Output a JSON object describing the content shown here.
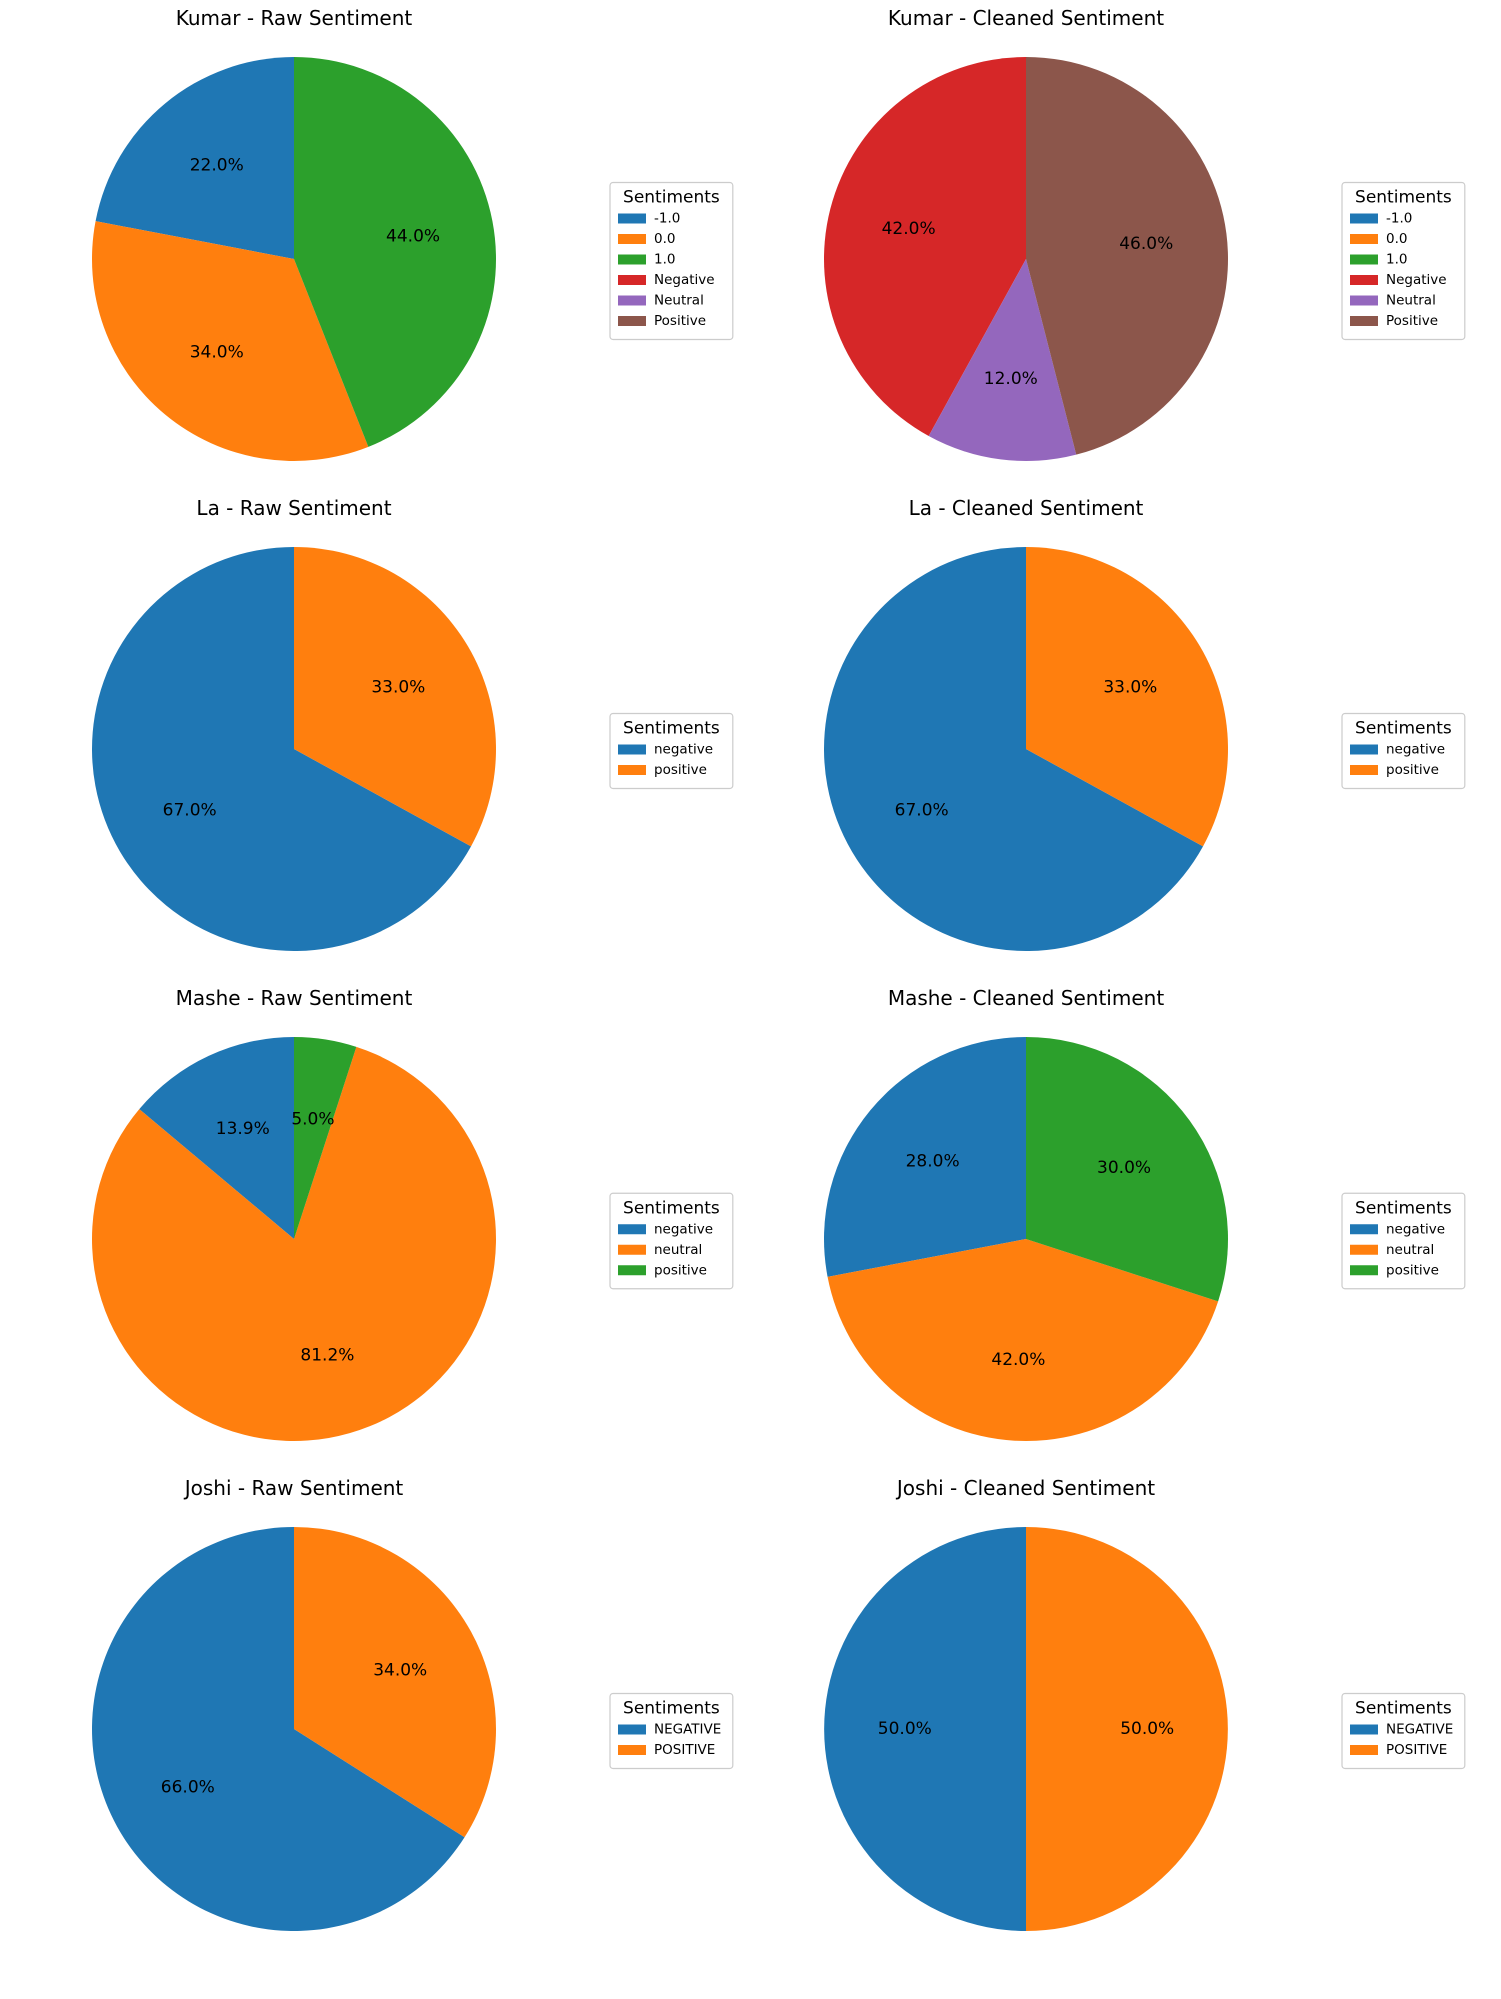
{
  "figure_title": "",
  "legend_title": "Sentiments",
  "chart_data": [
    {
      "type": "pie",
      "title": "Kumar - Raw Sentiment",
      "legend_title": "Sentiments",
      "legend_entries": [
        {
          "label": "-1.0",
          "color": "#1f77b4"
        },
        {
          "label": "0.0",
          "color": "#ff7f0e"
        },
        {
          "label": "1.0",
          "color": "#2ca02c"
        },
        {
          "label": "Negative",
          "color": "#d62728"
        },
        {
          "label": "Neutral",
          "color": "#9467bd"
        },
        {
          "label": "Positive",
          "color": "#8c564b"
        }
      ],
      "slices": [
        {
          "label": "-1.0",
          "value": 22.0,
          "pct_label": "22.0%",
          "color": "#1f77b4"
        },
        {
          "label": "0.0",
          "value": 34.0,
          "pct_label": "34.0%",
          "color": "#ff7f0e"
        },
        {
          "label": "1.0",
          "value": 44.0,
          "pct_label": "44.0%",
          "color": "#2ca02c"
        }
      ]
    },
    {
      "type": "pie",
      "title": "Kumar - Cleaned Sentiment",
      "legend_title": "Sentiments",
      "legend_entries": [
        {
          "label": "-1.0",
          "color": "#1f77b4"
        },
        {
          "label": "0.0",
          "color": "#ff7f0e"
        },
        {
          "label": "1.0",
          "color": "#2ca02c"
        },
        {
          "label": "Negative",
          "color": "#d62728"
        },
        {
          "label": "Neutral",
          "color": "#9467bd"
        },
        {
          "label": "Positive",
          "color": "#8c564b"
        }
      ],
      "slices": [
        {
          "label": "Negative",
          "value": 42.0,
          "pct_label": "42.0%",
          "color": "#d62728"
        },
        {
          "label": "Neutral",
          "value": 12.0,
          "pct_label": "12.0%",
          "color": "#9467bd"
        },
        {
          "label": "Positive",
          "value": 46.0,
          "pct_label": "46.0%",
          "color": "#8c564b"
        }
      ]
    },
    {
      "type": "pie",
      "title": "La - Raw Sentiment",
      "legend_title": "Sentiments",
      "legend_entries": [
        {
          "label": "negative",
          "color": "#1f77b4"
        },
        {
          "label": "positive",
          "color": "#ff7f0e"
        }
      ],
      "slices": [
        {
          "label": "negative",
          "value": 67.0,
          "pct_label": "67.0%",
          "color": "#1f77b4"
        },
        {
          "label": "positive",
          "value": 33.0,
          "pct_label": "33.0%",
          "color": "#ff7f0e"
        }
      ]
    },
    {
      "type": "pie",
      "title": "La - Cleaned Sentiment",
      "legend_title": "Sentiments",
      "legend_entries": [
        {
          "label": "negative",
          "color": "#1f77b4"
        },
        {
          "label": "positive",
          "color": "#ff7f0e"
        }
      ],
      "slices": [
        {
          "label": "negative",
          "value": 67.0,
          "pct_label": "67.0%",
          "color": "#1f77b4"
        },
        {
          "label": "positive",
          "value": 33.0,
          "pct_label": "33.0%",
          "color": "#ff7f0e"
        }
      ]
    },
    {
      "type": "pie",
      "title": "Mashe - Raw Sentiment",
      "legend_title": "Sentiments",
      "legend_entries": [
        {
          "label": "negative",
          "color": "#1f77b4"
        },
        {
          "label": "neutral",
          "color": "#ff7f0e"
        },
        {
          "label": "positive",
          "color": "#2ca02c"
        }
      ],
      "slices": [
        {
          "label": "negative",
          "value": 13.9,
          "pct_label": "13.9%",
          "color": "#1f77b4"
        },
        {
          "label": "neutral",
          "value": 81.2,
          "pct_label": "81.2%",
          "color": "#ff7f0e"
        },
        {
          "label": "positive",
          "value": 5.0,
          "pct_label": "5.0%",
          "color": "#2ca02c"
        }
      ]
    },
    {
      "type": "pie",
      "title": "Mashe - Cleaned Sentiment",
      "legend_title": "Sentiments",
      "legend_entries": [
        {
          "label": "negative",
          "color": "#1f77b4"
        },
        {
          "label": "neutral",
          "color": "#ff7f0e"
        },
        {
          "label": "positive",
          "color": "#2ca02c"
        }
      ],
      "slices": [
        {
          "label": "negative",
          "value": 28.0,
          "pct_label": "28.0%",
          "color": "#1f77b4"
        },
        {
          "label": "neutral",
          "value": 42.0,
          "pct_label": "42.0%",
          "color": "#ff7f0e"
        },
        {
          "label": "positive",
          "value": 30.0,
          "pct_label": "30.0%",
          "color": "#2ca02c"
        }
      ]
    },
    {
      "type": "pie",
      "title": "Joshi - Raw Sentiment",
      "legend_title": "Sentiments",
      "legend_entries": [
        {
          "label": "NEGATIVE",
          "color": "#1f77b4"
        },
        {
          "label": "POSITIVE",
          "color": "#ff7f0e"
        }
      ],
      "slices": [
        {
          "label": "NEGATIVE",
          "value": 66.0,
          "pct_label": "66.0%",
          "color": "#1f77b4"
        },
        {
          "label": "POSITIVE",
          "value": 34.0,
          "pct_label": "34.0%",
          "color": "#ff7f0e"
        }
      ]
    },
    {
      "type": "pie",
      "title": "Joshi - Cleaned Sentiment",
      "legend_title": "Sentiments",
      "legend_entries": [
        {
          "label": "NEGATIVE",
          "color": "#1f77b4"
        },
        {
          "label": "POSITIVE",
          "color": "#ff7f0e"
        }
      ],
      "slices": [
        {
          "label": "NEGATIVE",
          "value": 50.0,
          "pct_label": "50.0%",
          "color": "#1f77b4"
        },
        {
          "label": "POSITIVE",
          "value": 50.0,
          "pct_label": "50.0%",
          "color": "#ff7f0e"
        }
      ]
    }
  ]
}
